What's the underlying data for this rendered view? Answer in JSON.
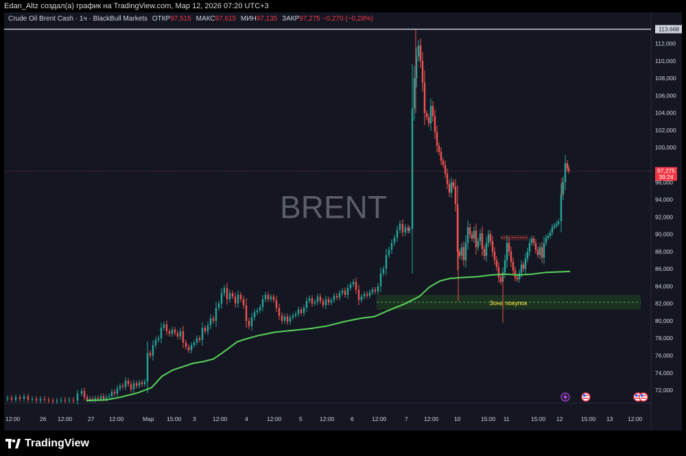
{
  "header": {
    "caption": "Edan_Altz создал(а) график на TradingView.com, Мар 12, 2026 07:20 UTC+3"
  },
  "legend": {
    "symbol": "Crude Oil Brent Cash · 1ч · BlackBull Markets",
    "open_label": "ОТКР",
    "open": "97,515",
    "high_label": "МАКС",
    "high": "97,615",
    "low_label": "МИН",
    "low": "97,135",
    "close_label": "ЗАКР",
    "close": "97,275",
    "change": "−0,270 (−0,28%)"
  },
  "watermark": "BRENT",
  "zone_label": "Зона покупок",
  "price_tags": {
    "high_line": "113,668",
    "last": "97,275",
    "countdown": "39:24"
  },
  "footer": {
    "brand": "TradingView"
  },
  "colors": {
    "up": "#26a69a",
    "down": "#ef5350",
    "ma": "#5ad45a",
    "zone": "#1e3a22",
    "price_line": "#ef5350"
  },
  "chart_data": {
    "type": "candlestick",
    "ylim": [
      70.5,
      114.5
    ],
    "y_ticks": [
      "72,000",
      "74,000",
      "76,000",
      "78,000",
      "80,000",
      "82,000",
      "84,000",
      "86,000",
      "88,000",
      "90,000",
      "92,000",
      "94,000",
      "96,000",
      "98,000",
      "100,000",
      "102,000",
      "104,000",
      "106,000",
      "108,000",
      "110,000",
      "112,000"
    ],
    "x_ticks": [
      "12:00",
      "26",
      "12:00",
      "27",
      "12:00",
      "Мар",
      "15:00",
      "3",
      "12:00",
      "4",
      "12:00",
      "5",
      "12:00",
      "6",
      "12:00",
      "7",
      "12:00",
      "10",
      "15:00",
      "11",
      "15:00",
      "12",
      "15:00",
      "13",
      "12:00"
    ],
    "high_line": 113.668,
    "last_price": 97.275,
    "buy_zone": {
      "low": 81.3,
      "high": 83.0,
      "mid": 82.15
    },
    "close_path": [
      [
        0,
        71.0
      ],
      [
        6,
        71.1
      ],
      [
        12,
        70.9
      ],
      [
        18,
        71.2
      ],
      [
        24,
        71.0
      ],
      [
        30,
        71.3
      ],
      [
        36,
        70.9
      ],
      [
        42,
        71.0
      ],
      [
        48,
        70.8
      ],
      [
        54,
        71.0
      ],
      [
        60,
        70.9
      ],
      [
        66,
        70.8
      ],
      [
        72,
        70.7
      ],
      [
        78,
        70.8
      ],
      [
        84,
        70.9
      ],
      [
        90,
        70.8
      ],
      [
        96,
        70.9
      ],
      [
        102,
        70.8
      ],
      [
        108,
        71.6
      ],
      [
        114,
        71.9
      ],
      [
        118,
        71.2
      ],
      [
        122,
        70.9
      ],
      [
        126,
        71.0
      ],
      [
        130,
        70.9
      ],
      [
        134,
        71.1
      ],
      [
        138,
        71.0
      ],
      [
        142,
        71.3
      ],
      [
        146,
        71.0
      ],
      [
        150,
        71.2
      ],
      [
        154,
        71.3
      ],
      [
        158,
        71.8
      ],
      [
        162,
        71.6
      ],
      [
        166,
        72.2
      ],
      [
        170,
        72.5
      ],
      [
        174,
        72.4
      ],
      [
        178,
        73.1
      ],
      [
        182,
        72.7
      ],
      [
        186,
        72.1
      ],
      [
        190,
        72.8
      ],
      [
        194,
        72.5
      ],
      [
        198,
        72.9
      ],
      [
        202,
        72.7
      ],
      [
        206,
        73.0
      ],
      [
        210,
        76.3
      ],
      [
        214,
        76.0
      ],
      [
        218,
        77.2
      ],
      [
        222,
        77.8
      ],
      [
        226,
        78.0
      ],
      [
        230,
        79.2
      ],
      [
        234,
        79.6
      ],
      [
        238,
        78.8
      ],
      [
        242,
        78.5
      ],
      [
        246,
        79.0
      ],
      [
        250,
        78.6
      ],
      [
        254,
        78.2
      ],
      [
        258,
        78.8
      ],
      [
        262,
        77.5
      ],
      [
        266,
        77.0
      ],
      [
        270,
        76.6
      ],
      [
        274,
        77.2
      ],
      [
        278,
        77.5
      ],
      [
        282,
        78.0
      ],
      [
        286,
        77.8
      ],
      [
        290,
        79.2
      ],
      [
        294,
        78.8
      ],
      [
        298,
        79.5
      ],
      [
        302,
        80.3
      ],
      [
        306,
        80.0
      ],
      [
        310,
        81.5
      ],
      [
        314,
        82.0
      ],
      [
        318,
        83.2
      ],
      [
        322,
        83.8
      ],
      [
        326,
        82.5
      ],
      [
        330,
        83.2
      ],
      [
        334,
        82.8
      ],
      [
        338,
        82.0
      ],
      [
        342,
        83.0
      ],
      [
        346,
        82.5
      ],
      [
        350,
        81.8
      ],
      [
        354,
        80.0
      ],
      [
        358,
        79.4
      ],
      [
        362,
        80.4
      ],
      [
        366,
        81.0
      ],
      [
        370,
        81.2
      ],
      [
        374,
        81.6
      ],
      [
        378,
        82.5
      ],
      [
        382,
        83.0
      ],
      [
        386,
        82.5
      ],
      [
        390,
        82.8
      ],
      [
        394,
        82.4
      ],
      [
        398,
        81.5
      ],
      [
        402,
        80.6
      ],
      [
        406,
        80.0
      ],
      [
        410,
        80.5
      ],
      [
        414,
        79.9
      ],
      [
        418,
        80.4
      ],
      [
        422,
        80.6
      ],
      [
        426,
        80.8
      ],
      [
        430,
        81.3
      ],
      [
        434,
        80.9
      ],
      [
        438,
        81.5
      ],
      [
        442,
        82.3
      ],
      [
        446,
        82.6
      ],
      [
        450,
        82.0
      ],
      [
        454,
        82.2
      ],
      [
        458,
        82.8
      ],
      [
        462,
        82.3
      ],
      [
        466,
        81.8
      ],
      [
        470,
        82.5
      ],
      [
        474,
        82.1
      ],
      [
        478,
        82.4
      ],
      [
        482,
        82.9
      ],
      [
        486,
        82.7
      ],
      [
        490,
        83.2
      ],
      [
        494,
        83.5
      ],
      [
        498,
        83.0
      ],
      [
        502,
        83.8
      ],
      [
        506,
        84.2
      ],
      [
        510,
        84.5
      ],
      [
        514,
        83.6
      ],
      [
        518,
        82.4
      ],
      [
        522,
        82.8
      ],
      [
        526,
        83.1
      ],
      [
        530,
        82.9
      ],
      [
        534,
        83.3
      ],
      [
        538,
        83.6
      ],
      [
        542,
        83.4
      ],
      [
        546,
        84.0
      ],
      [
        550,
        85.5
      ],
      [
        554,
        86.0
      ],
      [
        558,
        87.6
      ],
      [
        562,
        88.2
      ],
      [
        566,
        89.0
      ],
      [
        570,
        89.6
      ],
      [
        574,
        90.5
      ],
      [
        578,
        91.2
      ],
      [
        582,
        90.2
      ],
      [
        586,
        90.8
      ],
      [
        590,
        90.4
      ],
      [
        592,
        90.6
      ],
      [
        596,
        104.5
      ],
      [
        599,
        108.0
      ],
      [
        602,
        110.5
      ],
      [
        605,
        111.8
      ],
      [
        608,
        110.0
      ],
      [
        611,
        107.5
      ],
      [
        614,
        104.0
      ],
      [
        617,
        103.5
      ],
      [
        620,
        102.8
      ],
      [
        623,
        104.8
      ],
      [
        626,
        103.6
      ],
      [
        629,
        101.8
      ],
      [
        632,
        100.2
      ],
      [
        635,
        99.5
      ],
      [
        638,
        98.5
      ],
      [
        641,
        98.0
      ],
      [
        644,
        97.0
      ],
      [
        647,
        95.8
      ],
      [
        650,
        94.8
      ],
      [
        653,
        96.0
      ],
      [
        656,
        95.5
      ],
      [
        659,
        93.5
      ],
      [
        662,
        88.0
      ],
      [
        665,
        87.5
      ],
      [
        668,
        88.5
      ],
      [
        671,
        87.0
      ],
      [
        674,
        89.0
      ],
      [
        677,
        90.8
      ],
      [
        680,
        90.0
      ],
      [
        683,
        89.5
      ],
      [
        686,
        90.4
      ],
      [
        689,
        88.5
      ],
      [
        692,
        89.2
      ],
      [
        695,
        90.1
      ],
      [
        698,
        88.3
      ],
      [
        701,
        87.5
      ],
      [
        704,
        89.0
      ],
      [
        707,
        90.0
      ],
      [
        710,
        89.2
      ],
      [
        713,
        88.0
      ],
      [
        716,
        87.0
      ],
      [
        719,
        86.2
      ],
      [
        722,
        85.0
      ],
      [
        725,
        84.5
      ],
      [
        728,
        85.6
      ],
      [
        731,
        87.0
      ],
      [
        734,
        89.0
      ],
      [
        737,
        88.0
      ],
      [
        740,
        86.8
      ],
      [
        743,
        85.8
      ],
      [
        746,
        85.0
      ],
      [
        749,
        84.8
      ],
      [
        752,
        85.5
      ],
      [
        755,
        86.5
      ],
      [
        758,
        86.0
      ],
      [
        761,
        87.2
      ],
      [
        764,
        88.0
      ],
      [
        767,
        89.0
      ],
      [
        770,
        89.5
      ],
      [
        773,
        89.0
      ],
      [
        776,
        88.2
      ],
      [
        779,
        87.6
      ],
      [
        782,
        88.5
      ],
      [
        785,
        87.3
      ],
      [
        788,
        89.0
      ],
      [
        791,
        89.6
      ],
      [
        794,
        89.8
      ],
      [
        797,
        90.2
      ],
      [
        800,
        90.8
      ],
      [
        803,
        91.0
      ],
      [
        806,
        91.2
      ],
      [
        809,
        91.5
      ],
      [
        813,
        94.6
      ],
      [
        816,
        96.0
      ],
      [
        819,
        98.2
      ],
      [
        822,
        97.6
      ],
      [
        824,
        97.3
      ]
    ],
    "ma_path": [
      [
        120,
        70.8
      ],
      [
        150,
        70.9
      ],
      [
        170,
        71.2
      ],
      [
        195,
        71.7
      ],
      [
        215,
        72.3
      ],
      [
        230,
        73.6
      ],
      [
        245,
        74.3
      ],
      [
        260,
        74.7
      ],
      [
        275,
        75.1
      ],
      [
        290,
        75.3
      ],
      [
        305,
        75.6
      ],
      [
        318,
        76.3
      ],
      [
        330,
        77.0
      ],
      [
        340,
        77.6
      ],
      [
        352,
        77.9
      ],
      [
        370,
        78.3
      ],
      [
        395,
        78.7
      ],
      [
        420,
        78.9
      ],
      [
        445,
        79.1
      ],
      [
        470,
        79.4
      ],
      [
        495,
        79.9
      ],
      [
        520,
        80.3
      ],
      [
        540,
        80.5
      ],
      [
        560,
        81.2
      ],
      [
        585,
        82.0
      ],
      [
        605,
        82.8
      ],
      [
        620,
        83.9
      ],
      [
        635,
        84.6
      ],
      [
        650,
        84.9
      ],
      [
        668,
        85.0
      ],
      [
        690,
        85.1
      ],
      [
        710,
        85.3
      ],
      [
        730,
        85.4
      ],
      [
        750,
        85.3
      ],
      [
        770,
        85.4
      ],
      [
        790,
        85.6
      ],
      [
        825,
        85.7
      ]
    ]
  }
}
